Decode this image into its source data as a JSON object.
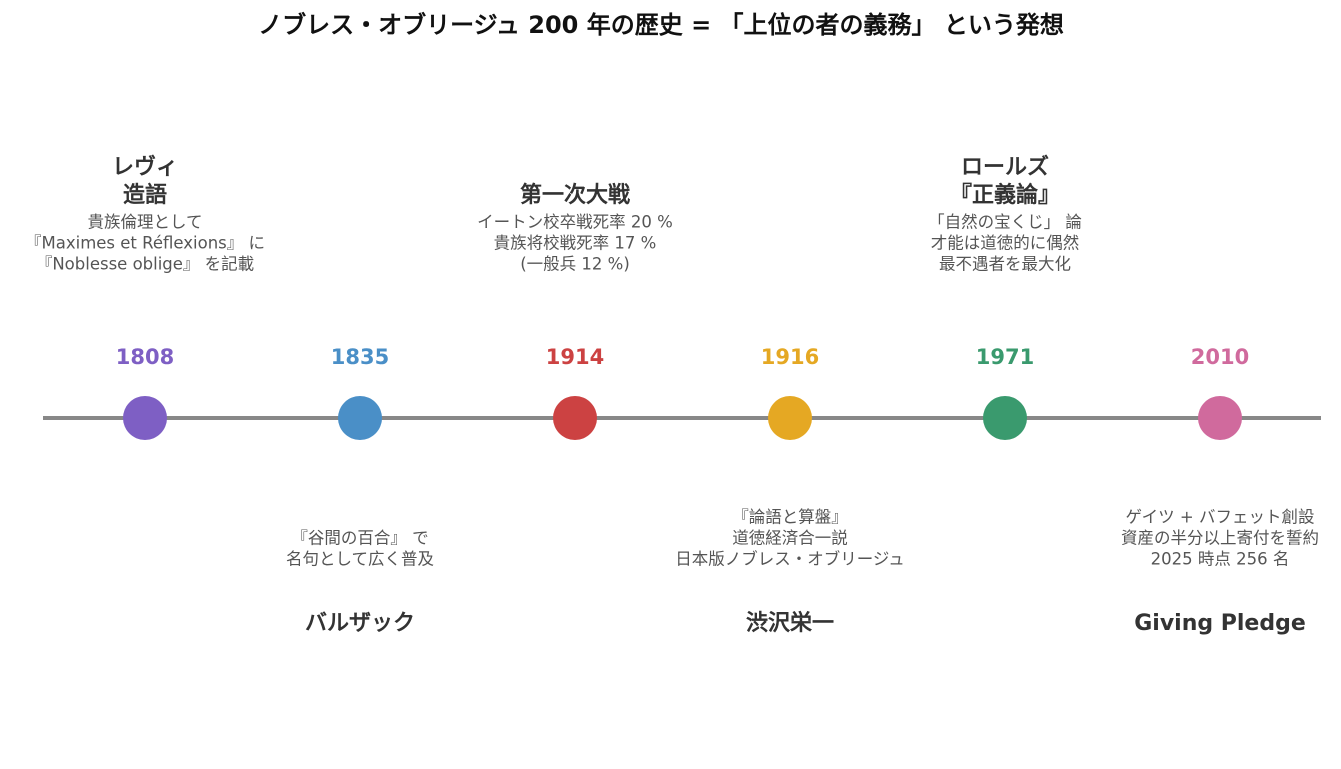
{
  "title": "ノブレス・オブリージュ 200 年の歴史 = 「上位の者の義務」 という発想",
  "events": [
    {
      "year": "1808",
      "color": "#7e5fc4",
      "title": [
        "レヴィ",
        "造語"
      ],
      "description": [
        "貴族倫理として",
        "『Maximes et Réflexions』 に",
        "『Noblesse oblige』 を記載"
      ]
    },
    {
      "year": "1835",
      "color": "#4a8fc7",
      "title": [
        "バルザック"
      ],
      "description": [
        "『谷間の百合』 で",
        "名句として広く普及"
      ]
    },
    {
      "year": "1914",
      "color": "#cc4242",
      "title": [
        "第一次大戦"
      ],
      "description": [
        "イートン校卒戦死率 20 %",
        "貴族将校戦死率 17 %",
        "(一般兵 12 %)"
      ]
    },
    {
      "year": "1916",
      "color": "#e5a823",
      "title": [
        "渋沢栄一"
      ],
      "description": [
        "『論語と算盤』",
        "道徳経済合一説",
        "日本版ノブレス・オブリージュ"
      ]
    },
    {
      "year": "1971",
      "color": "#3a9a6e",
      "title": [
        "ロールズ",
        "『正義論』"
      ],
      "description": [
        "「自然の宝くじ」 論",
        "才能は道徳的に偶然",
        "最不遇者を最大化"
      ]
    },
    {
      "year": "2010",
      "color": "#d06a9d",
      "title": [
        "Giving Pledge"
      ],
      "description": [
        "ゲイツ + バフェット創設",
        "資産の半分以上寄付を誓約",
        "2025 時点 256 名"
      ]
    }
  ]
}
